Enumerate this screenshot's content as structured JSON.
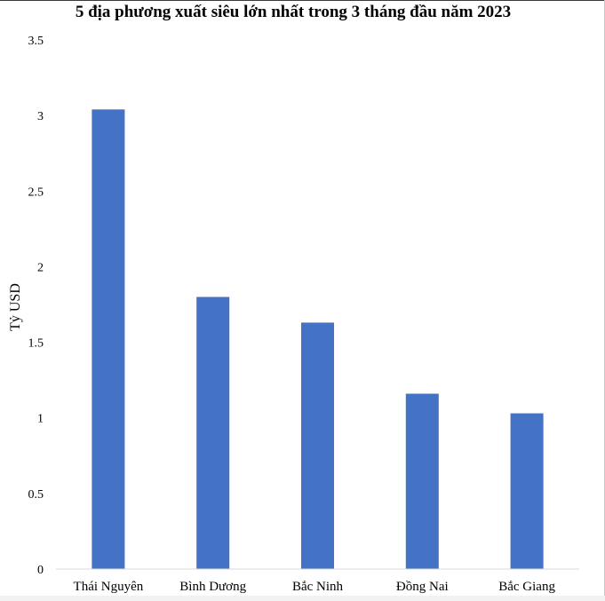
{
  "chart_data": {
    "type": "bar",
    "title": "5 địa phương xuất siêu lớn nhất trong 3 tháng đầu năm 2023",
    "xlabel": "",
    "ylabel": "Tỷ USD",
    "categories": [
      "Thái Nguyên",
      "Bình Dương",
      "Bắc Ninh",
      "Đồng Nai",
      "Bắc Giang"
    ],
    "values": [
      3.04,
      1.8,
      1.63,
      1.16,
      1.03
    ],
    "ylim": [
      0,
      3.5
    ],
    "yticks": [
      "0",
      "0.5",
      "1",
      "1.5",
      "2",
      "2.5",
      "3",
      "3.5"
    ],
    "grid": false,
    "legend": "none",
    "bar_color": "#4472c4"
  }
}
